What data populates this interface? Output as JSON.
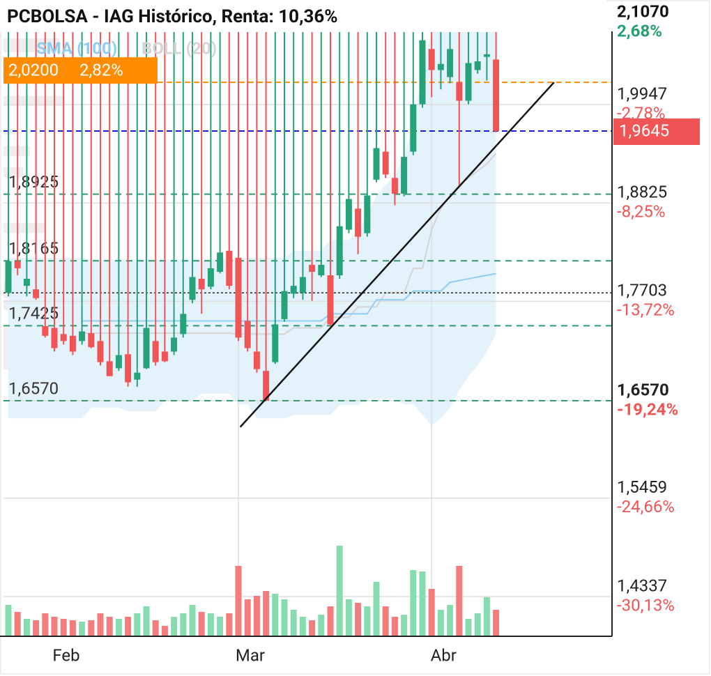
{
  "chart_data": {
    "type": "candlestick",
    "title": "PCBOLSA - IAG Histórico, Renta: 10,36%",
    "legend": [
      {
        "name": "SMA (100)",
        "color": "#8ecdf2"
      },
      {
        "name": "BOLL (20)",
        "color": "#d4d4d4"
      }
    ],
    "categories": [
      null,
      null,
      null,
      null,
      null,
      "Feb",
      null,
      null,
      null,
      null,
      null,
      null,
      null,
      null,
      null,
      null,
      null,
      null,
      null,
      null,
      null,
      null,
      null,
      null,
      null,
      "Mar",
      null,
      null,
      null,
      null,
      null,
      null,
      null,
      null,
      null,
      null,
      null,
      null,
      null,
      null,
      null,
      null,
      null,
      null,
      null,
      null,
      "Abr",
      null,
      null,
      null,
      null,
      null,
      null,
      null
    ],
    "open": [
      1.78,
      1.816,
      1.788,
      1.784,
      1.742,
      1.74,
      1.733,
      1.731,
      1.725,
      1.734,
      1.725,
      1.702,
      1.694,
      1.71,
      1.681,
      1.694,
      1.725,
      1.713,
      1.713,
      1.733,
      1.772,
      1.796,
      1.787,
      1.804,
      1.828,
      1.82,
      1.748,
      1.713,
      1.691,
      1.701,
      1.75,
      1.779,
      1.78,
      1.812,
      1.8,
      1.8,
      1.8,
      1.852,
      1.876,
      1.848,
      1.909,
      1.941,
      1.911,
      1.893,
      1.941,
      1.995,
      2.058,
      2.034,
      2.026,
      2.02,
      1.999,
      2.034,
      2.049,
      2.046
    ],
    "high": {
      "value": 2.107,
      "label": "2,1070"
    },
    "low": [
      1.776,
      1.8,
      1.776,
      1.772,
      1.729,
      1.713,
      1.721,
      1.709,
      1.721,
      1.717,
      1.697,
      1.685,
      1.691,
      1.673,
      1.673,
      1.693,
      1.697,
      1.701,
      1.709,
      1.729,
      1.768,
      1.756,
      1.784,
      1.802,
      1.784,
      1.725,
      1.713,
      1.689,
      1.657,
      1.699,
      1.747,
      1.774,
      1.772,
      1.771,
      1.798,
      1.742,
      1.796,
      1.848,
      1.824,
      1.844,
      1.906,
      1.911,
      1.88,
      1.89,
      1.937,
      1.991,
      2.003,
      2.012,
      2.019,
      1.903,
      1.995,
      2.03,
      2.022,
      1.963
    ],
    "close": [
      1.816,
      1.808,
      1.796,
      1.774,
      1.731,
      1.717,
      1.725,
      1.713,
      1.736,
      1.718,
      1.701,
      1.685,
      1.709,
      1.678,
      1.689,
      1.74,
      1.701,
      1.702,
      1.729,
      1.756,
      1.798,
      1.784,
      1.808,
      1.826,
      1.788,
      1.729,
      1.717,
      1.693,
      1.657,
      1.744,
      1.782,
      1.788,
      1.798,
      1.804,
      1.812,
      1.744,
      1.856,
      1.887,
      1.844,
      1.891,
      1.945,
      1.915,
      1.893,
      1.935,
      1.995,
      2.068,
      2.034,
      2.041,
      2.058,
      1.999,
      2.042,
      2.044,
      2.052,
      1.9645
    ],
    "volume": [
      45,
      35,
      25,
      23,
      33,
      28,
      25,
      23,
      21,
      23,
      33,
      28,
      25,
      28,
      33,
      43,
      23,
      15,
      28,
      33,
      45,
      35,
      33,
      28,
      33,
      101,
      53,
      58,
      65,
      61,
      53,
      38,
      28,
      23,
      31,
      43,
      130,
      53,
      48,
      43,
      78,
      43,
      28,
      31,
      95,
      93,
      68,
      38,
      45,
      101,
      25,
      33,
      56,
      38
    ],
    "sma": [
      null,
      null,
      null,
      null,
      null,
      null,
      null,
      null,
      1.748,
      1.748,
      1.748,
      1.748,
      1.748,
      1.748,
      1.748,
      1.748,
      1.748,
      1.748,
      1.748,
      1.748,
      1.748,
      1.748,
      1.748,
      1.748,
      1.748,
      1.748,
      1.748,
      1.748,
      1.748,
      1.748,
      1.748,
      1.748,
      1.748,
      1.748,
      1.748,
      1.756,
      1.756,
      1.756,
      1.756,
      1.756,
      1.772,
      1.772,
      1.772,
      1.772,
      1.782,
      1.782,
      1.782,
      1.782,
      1.792,
      1.794,
      1.796,
      1.798,
      1.8,
      1.802
    ],
    "boll_upper": [
      1.82,
      1.82,
      1.82,
      1.82,
      1.82,
      1.82,
      1.82,
      1.82,
      1.82,
      1.818,
      1.818,
      1.818,
      1.818,
      1.818,
      1.818,
      1.818,
      1.818,
      1.818,
      1.818,
      1.818,
      1.818,
      1.818,
      1.818,
      1.818,
      1.818,
      1.82,
      1.82,
      1.82,
      1.82,
      1.82,
      1.82,
      1.828,
      1.828,
      1.828,
      1.828,
      1.84,
      1.84,
      1.84,
      1.852,
      1.868,
      1.891,
      1.903,
      1.915,
      1.935,
      1.971,
      2.034,
      2.078,
      2.078,
      2.078,
      2.078,
      2.078,
      2.078,
      2.078,
      2.078
    ],
    "boll_mid": [
      null,
      null,
      null,
      null,
      null,
      null,
      null,
      null,
      1.734,
      1.734,
      1.734,
      1.734,
      1.734,
      1.734,
      1.734,
      1.734,
      1.734,
      1.734,
      1.734,
      1.734,
      1.734,
      1.734,
      1.734,
      1.734,
      1.734,
      1.733,
      1.733,
      1.733,
      1.733,
      1.733,
      1.733,
      1.74,
      1.74,
      1.74,
      1.74,
      1.752,
      1.752,
      1.752,
      1.764,
      1.764,
      1.764,
      1.78,
      1.78,
      1.78,
      1.808,
      1.808,
      1.852,
      1.876,
      1.891,
      1.903,
      1.911,
      1.919,
      1.927,
      1.939
    ],
    "boll_lower": [
      1.637,
      1.637,
      1.637,
      1.637,
      1.637,
      1.637,
      1.637,
      1.637,
      1.637,
      1.649,
      1.649,
      1.649,
      1.649,
      1.645,
      1.645,
      1.645,
      1.645,
      1.657,
      1.657,
      1.657,
      1.657,
      1.665,
      1.665,
      1.665,
      1.665,
      1.653,
      1.653,
      1.637,
      1.637,
      1.637,
      1.637,
      1.641,
      1.641,
      1.641,
      1.641,
      1.641,
      1.652,
      1.652,
      1.652,
      1.659,
      1.659,
      1.659,
      1.659,
      1.653,
      1.653,
      1.641,
      1.629,
      1.637,
      1.649,
      1.669,
      1.685,
      1.697,
      1.713,
      1.733
    ],
    "colors": {
      "up": "#26a27b",
      "down": "#f05454",
      "volume_up": "#86dcae",
      "volume_down": "#f47c7c",
      "band": "#e4f2fc"
    },
    "ylim": [
      1.3884,
      2.1139
    ],
    "yticks": [
      {
        "value": 1.9947,
        "label": "1,9947"
      },
      {
        "value": 1.8825,
        "label": "1,8825"
      },
      {
        "value": 1.7703,
        "label": "1,7703"
      },
      {
        "value": 1.657,
        "label": "1,6570"
      },
      {
        "value": 1.5459,
        "label": "1,5459"
      },
      {
        "value": 1.4337,
        "label": "1,4337"
      }
    ],
    "ytick_changes": [
      {
        "value": -2.78,
        "label": "-2,78%"
      },
      {
        "value": -8.25,
        "label": "-8,25%"
      },
      {
        "value": -13.72,
        "label": "-13,72%"
      },
      {
        "value": -19.24,
        "label": "-19,24%"
      },
      {
        "value": -24.66,
        "label": "-24,66%"
      },
      {
        "value": -30.13,
        "label": "-30,13%"
      }
    ],
    "bold_ticks": [
      1.657
    ],
    "grid": true,
    "levels": [
      {
        "value": 1.8925,
        "label": "1,8925"
      },
      {
        "value": 1.8165,
        "label": "1,8165"
      },
      {
        "value": 1.7425,
        "label": "1,7425"
      },
      {
        "value": 1.657,
        "label": "1,6570"
      }
    ],
    "level_color": "#2a9d6f",
    "reference_lines": [
      {
        "value": 1.78,
        "color": "#222222",
        "style": "dotted"
      }
    ],
    "alert": {
      "value": 2.02,
      "label": "2,0200",
      "change": {
        "value": 2.82,
        "label": "2,82%"
      },
      "color": "#ff8c00"
    },
    "current_price": {
      "value": 1.9645,
      "label": "1,9645",
      "color": "#f05454",
      "line_color": "#1a1ad6"
    },
    "high_change": {
      "value": 2.68,
      "label": "2,68%",
      "color": "#2a9d6f"
    },
    "trendline": {
      "x": [
        25.2,
        59.3
      ],
      "y": [
        1.627,
        2.02
      ],
      "color": "#111111"
    }
  }
}
